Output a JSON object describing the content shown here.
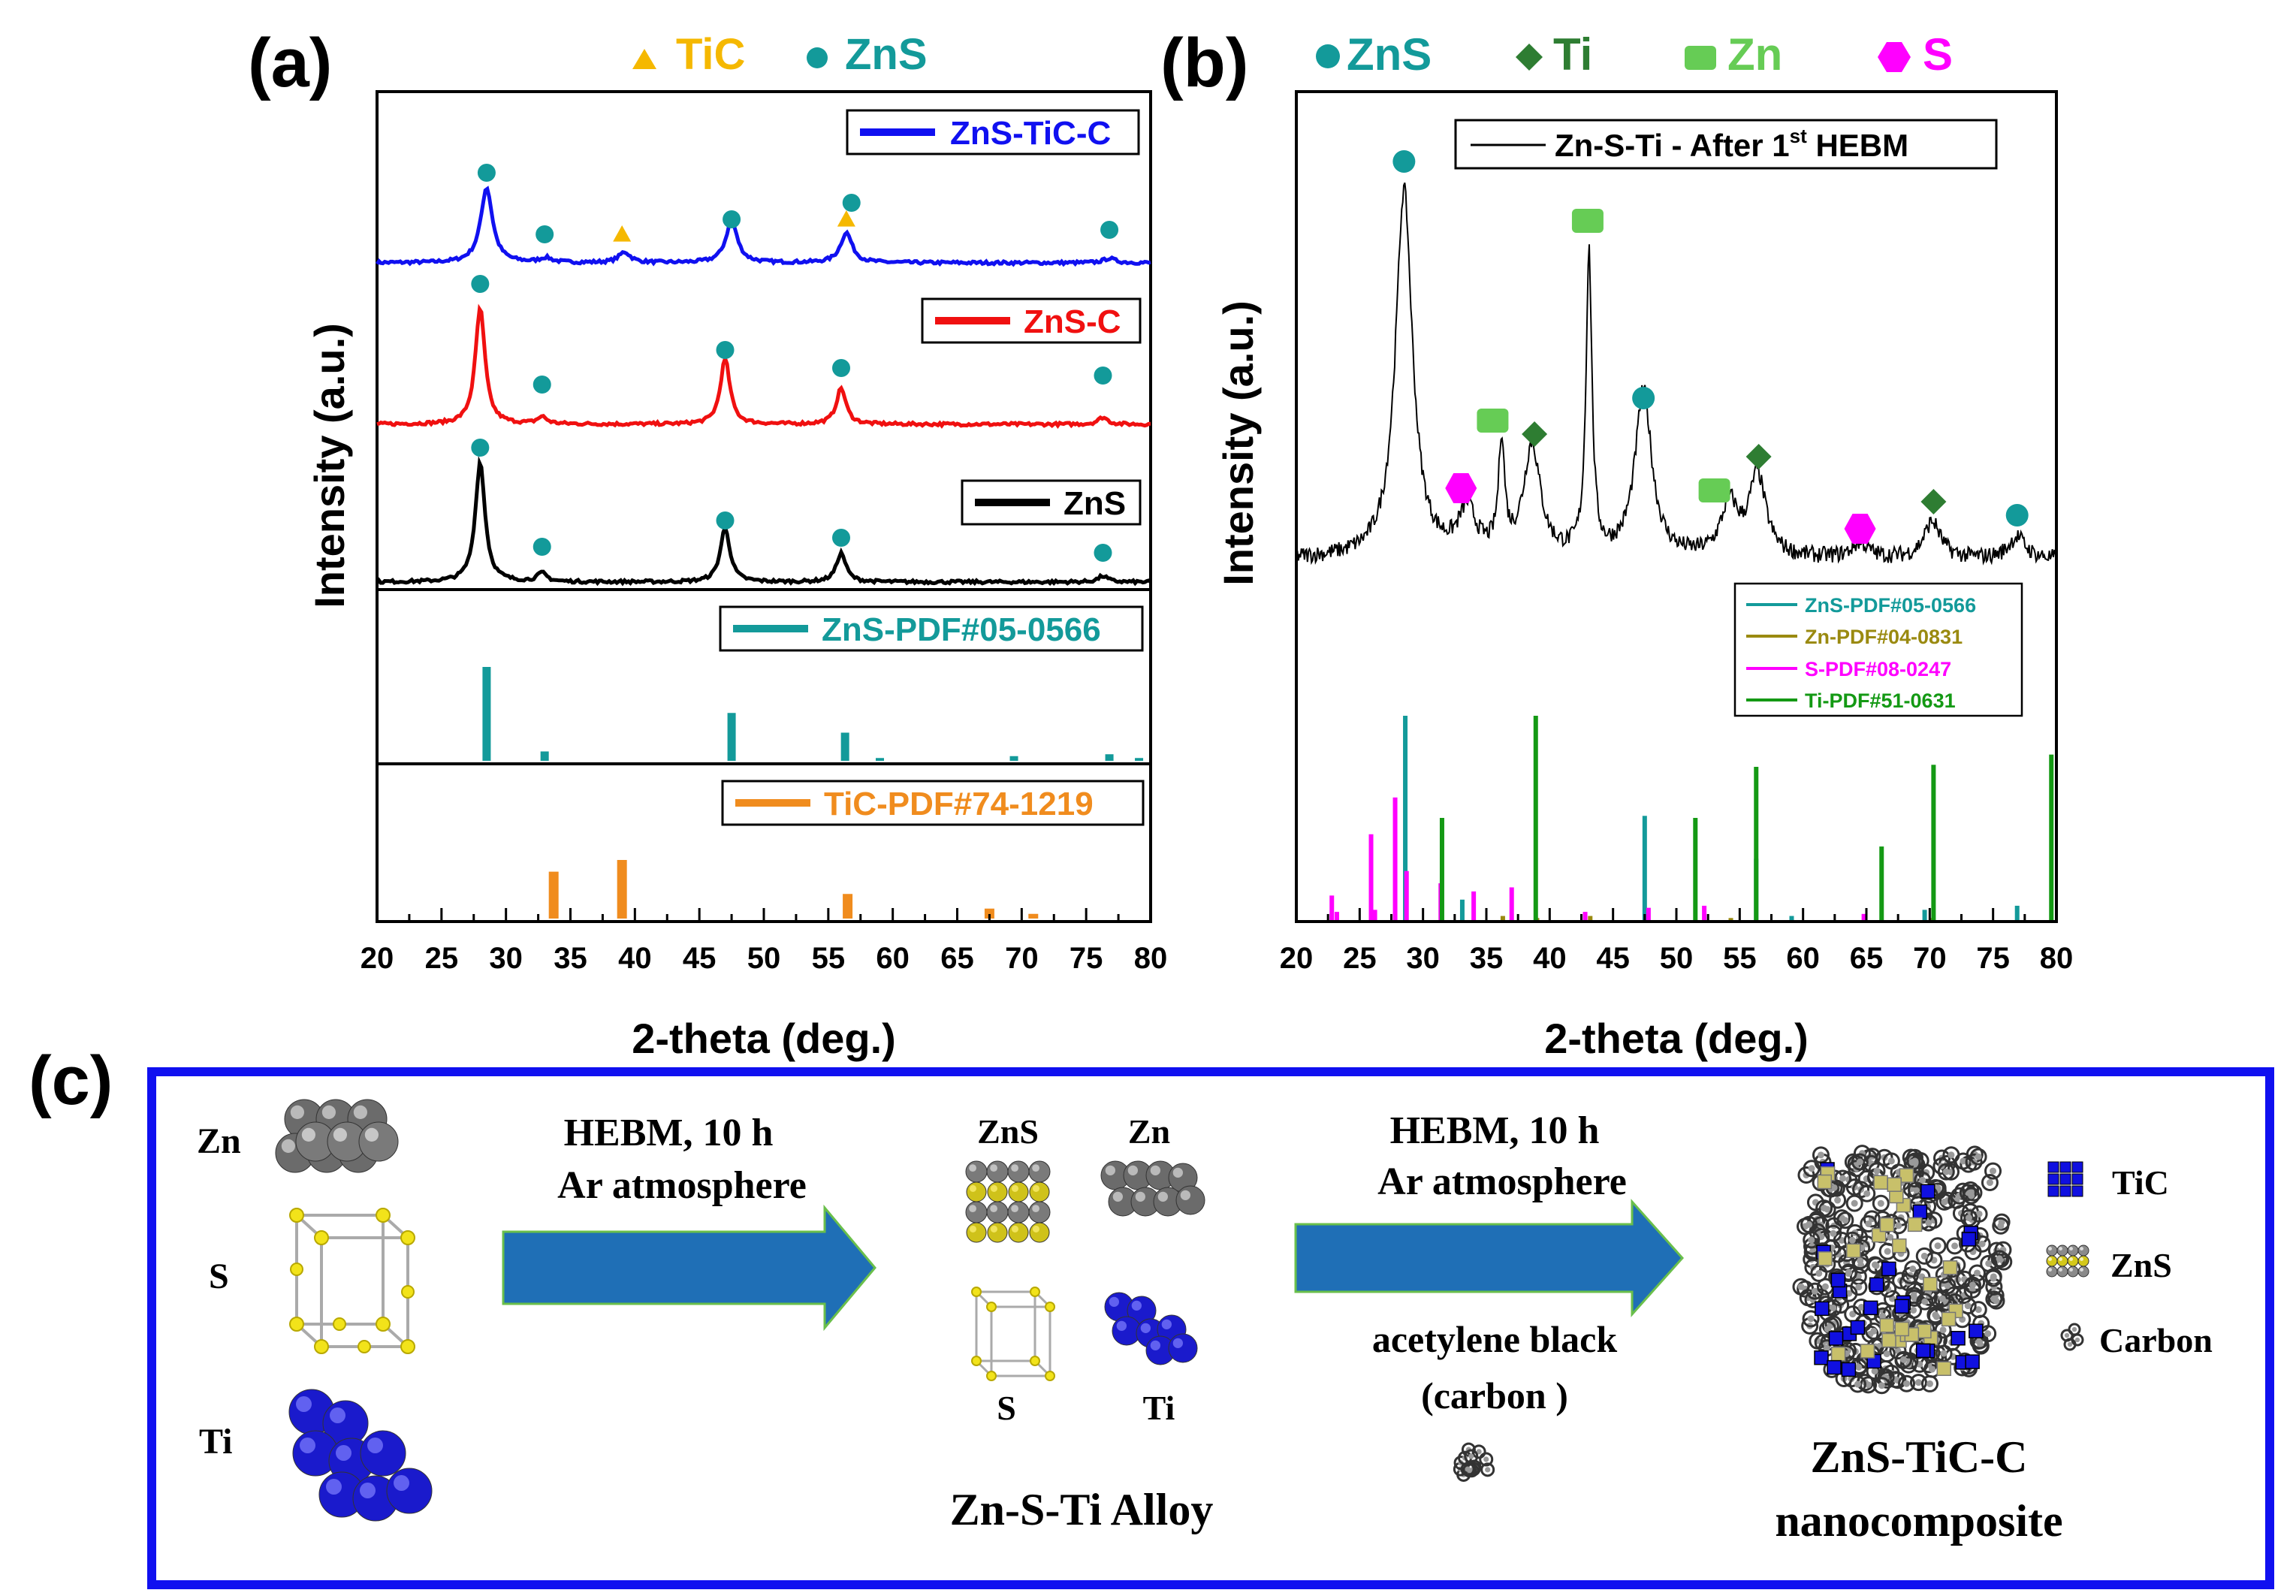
{
  "panel_a": {
    "label": "(a)",
    "legend": {
      "tic": "TiC",
      "zns": "ZnS"
    },
    "ylabel": "Intensity (a.u.)",
    "xlabel": "2-theta (deg.)",
    "series_labels": {
      "zns_tic_c": "ZnS-TiC-C",
      "zns_c": "ZnS-C",
      "zns": "ZnS",
      "ref_zns": "ZnS-PDF#05-0566",
      "ref_tic": "TiC-PDF#74-1219"
    }
  },
  "panel_b": {
    "label": "(b)",
    "legend": {
      "zns": "ZnS",
      "ti": "Ti",
      "zn": "Zn",
      "s": "S"
    },
    "ylabel": "Intensity (a.u.)",
    "xlabel": "2-theta (deg.)",
    "trace_label_main": "Zn-S-Ti - After 1",
    "trace_label_sup": "st",
    "trace_label_end": " HEBM",
    "ref_labels": {
      "zns": "ZnS-PDF#05-0566",
      "zn": "Zn-PDF#04-0831",
      "s": "S-PDF#08-0247",
      "ti": "Ti-PDF#51-0631"
    }
  },
  "panel_c": {
    "label": "(c)",
    "elements": {
      "zn": "Zn",
      "s": "S",
      "ti": "Ti"
    },
    "step1": {
      "line1": "HEBM, 10 h",
      "line2": "Ar atmosphere"
    },
    "alloy": {
      "zns": "ZnS",
      "zn": "Zn",
      "s": "S",
      "ti": "Ti",
      "title": "Zn-S-Ti Alloy"
    },
    "step2": {
      "line1": "HEBM, 10 h",
      "line2": "Ar atmosphere",
      "additive1": "acetylene black",
      "additive2": "(carbon )"
    },
    "product": {
      "line1": "ZnS-TiC-C",
      "line2": "nanocomposite"
    },
    "legend": {
      "tic": "TiC",
      "zns": "ZnS",
      "carbon": "Carbon"
    }
  },
  "colors": {
    "blue": "#1010f0",
    "red": "#f01010",
    "black": "#000000",
    "teal": "#139a9a",
    "orange": "#f08c1e",
    "tic_marker": "#f5b800",
    "ti_marker": "#2e7d32",
    "zn_marker": "#66cc55",
    "s_marker": "#ff00ff",
    "zn_ref": "#9a8a10",
    "ti_ref": "#149914",
    "frame": "#1010f0"
  },
  "chart_data": [
    {
      "type": "line",
      "title": "(a)",
      "xlabel": "2-theta (deg.)",
      "ylabel": "Intensity (a.u.)",
      "xlim": [
        20,
        80
      ],
      "xticks": [
        20,
        25,
        30,
        35,
        40,
        45,
        50,
        55,
        60,
        65,
        70,
        75,
        80
      ],
      "series": [
        {
          "name": "ZnS-TiC-C",
          "peaks": [
            [
              28.5,
              1.0
            ],
            [
              33.1,
              0.06
            ],
            [
              39.2,
              0.14
            ],
            [
              47.5,
              0.55
            ],
            [
              56.4,
              0.4
            ],
            [
              76.8,
              0.06
            ]
          ]
        },
        {
          "name": "ZnS-C",
          "peaks": [
            [
              28.0,
              1.0
            ],
            [
              32.8,
              0.06
            ],
            [
              47.0,
              0.56
            ],
            [
              56.0,
              0.31
            ],
            [
              76.3,
              0.06
            ]
          ]
        },
        {
          "name": "ZnS",
          "peaks": [
            [
              28.0,
              1.0
            ],
            [
              32.8,
              0.07
            ],
            [
              47.0,
              0.45
            ],
            [
              56.0,
              0.24
            ],
            [
              76.3,
              0.05
            ]
          ]
        },
        {
          "name": "ZnS-PDF#05-0566",
          "sticks": [
            [
              28.5,
              100
            ],
            [
              33.0,
              10
            ],
            [
              47.5,
              51
            ],
            [
              56.3,
              30
            ],
            [
              59.0,
              3
            ],
            [
              69.4,
              5
            ],
            [
              76.8,
              7
            ],
            [
              79.1,
              3
            ]
          ]
        },
        {
          "name": "TiC-PDF#74-1219",
          "sticks": [
            [
              33.7,
              80
            ],
            [
              39.0,
              100
            ],
            [
              56.5,
              42
            ],
            [
              67.5,
              17
            ],
            [
              70.9,
              8
            ]
          ]
        }
      ],
      "markers": {
        "ZnS-TiC-C": [
          {
            "x": 28.5,
            "phase": "ZnS"
          },
          {
            "x": 33.0,
            "phase": "ZnS"
          },
          {
            "x": 39.0,
            "phase": "TiC"
          },
          {
            "x": 47.5,
            "phase": "ZnS"
          },
          {
            "x": 56.4,
            "phase": "TiC"
          },
          {
            "x": 56.8,
            "phase": "ZnS"
          },
          {
            "x": 76.8,
            "phase": "ZnS"
          }
        ],
        "ZnS-C": [
          {
            "x": 28.0,
            "phase": "ZnS"
          },
          {
            "x": 32.8,
            "phase": "ZnS"
          },
          {
            "x": 47.0,
            "phase": "ZnS"
          },
          {
            "x": 56.0,
            "phase": "ZnS"
          },
          {
            "x": 76.3,
            "phase": "ZnS"
          }
        ],
        "ZnS": [
          {
            "x": 28.0,
            "phase": "ZnS"
          },
          {
            "x": 32.8,
            "phase": "ZnS"
          },
          {
            "x": 47.0,
            "phase": "ZnS"
          },
          {
            "x": 56.0,
            "phase": "ZnS"
          },
          {
            "x": 76.3,
            "phase": "ZnS"
          }
        ]
      }
    },
    {
      "type": "line",
      "title": "(b)",
      "xlabel": "2-theta (deg.)",
      "ylabel": "Intensity (a.u.)",
      "xlim": [
        20,
        80
      ],
      "xticks": [
        20,
        25,
        30,
        35,
        40,
        45,
        50,
        55,
        60,
        65,
        70,
        75,
        80
      ],
      "series": [
        {
          "name": "Zn-S-Ti - After 1st HEBM",
          "peaks": [
            [
              28.5,
              1.0
            ],
            [
              33.5,
              0.12
            ],
            [
              36.2,
              0.3
            ],
            [
              38.6,
              0.3
            ],
            [
              43.1,
              0.82
            ],
            [
              47.4,
              0.45
            ],
            [
              54.2,
              0.14
            ],
            [
              56.4,
              0.22
            ],
            [
              64.5,
              0.04
            ],
            [
              70.2,
              0.1
            ],
            [
              76.9,
              0.06
            ]
          ]
        },
        {
          "name": "ZnS-PDF#05-0566",
          "sticks": [
            [
              28.6,
              100
            ],
            [
              33.1,
              10
            ],
            [
              47.5,
              51
            ],
            [
              56.3,
              30
            ],
            [
              59.1,
              2
            ],
            [
              69.6,
              5
            ],
            [
              76.9,
              7
            ]
          ]
        },
        {
          "name": "Zn-PDF#04-0831",
          "sticks": [
            [
              36.3,
              2
            ],
            [
              39.0,
              1
            ],
            [
              43.2,
              2
            ],
            [
              54.3,
              1
            ],
            [
              70.1,
              1
            ]
          ]
        },
        {
          "name": "S-PDF#08-0247",
          "sticks": [
            [
              22.8,
              12
            ],
            [
              23.2,
              4
            ],
            [
              25.9,
              42
            ],
            [
              26.2,
              5
            ],
            [
              27.8,
              60
            ],
            [
              28.7,
              24
            ],
            [
              31.4,
              18
            ],
            [
              34.0,
              14
            ],
            [
              37.0,
              16
            ],
            [
              42.8,
              4
            ],
            [
              47.8,
              6
            ],
            [
              52.2,
              7
            ],
            [
              64.8,
              3
            ]
          ]
        },
        {
          "name": "Ti-PDF#51-0631",
          "sticks": [
            [
              31.5,
              50
            ],
            [
              38.9,
              100
            ],
            [
              51.5,
              50
            ],
            [
              56.3,
              75
            ],
            [
              66.2,
              36
            ],
            [
              70.3,
              76
            ],
            [
              79.6,
              81
            ]
          ]
        }
      ],
      "markers": [
        {
          "x": 28.5,
          "phase": "ZnS"
        },
        {
          "x": 33.0,
          "phase": "S"
        },
        {
          "x": 35.5,
          "phase": "Zn"
        },
        {
          "x": 38.8,
          "phase": "Ti"
        },
        {
          "x": 43.0,
          "phase": "Zn"
        },
        {
          "x": 47.4,
          "phase": "ZnS"
        },
        {
          "x": 53.0,
          "phase": "Zn"
        },
        {
          "x": 56.5,
          "phase": "Ti"
        },
        {
          "x": 64.5,
          "phase": "S"
        },
        {
          "x": 70.3,
          "phase": "Ti"
        },
        {
          "x": 76.9,
          "phase": "ZnS"
        }
      ]
    }
  ]
}
